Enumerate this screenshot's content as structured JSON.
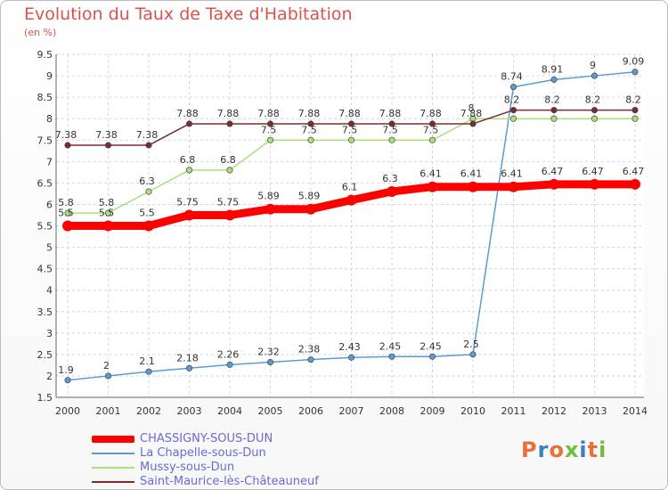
{
  "header": {
    "title": "Evolution du Taux de Taxe d'Habitation",
    "unit": "(en %)"
  },
  "logo": {
    "text": "Proxiti"
  },
  "chart_data": {
    "type": "line",
    "title": "Evolution du Taux de Taxe d'Habitation",
    "subtitle": "(en %)",
    "x": [
      "2000",
      "2001",
      "2002",
      "2003",
      "2004",
      "2005",
      "2006",
      "2007",
      "2008",
      "2009",
      "2010",
      "2011",
      "2012",
      "2013",
      "2014"
    ],
    "yticks": [
      "1.5",
      "2",
      "2.5",
      "3",
      "3.5",
      "4",
      "4.5",
      "5",
      "5.5",
      "6",
      "6.5",
      "7",
      "7.5",
      "8",
      "8.5",
      "9",
      "9.5"
    ],
    "ylim": [
      1.5,
      9.5
    ],
    "grid": true,
    "legend_position": "bottom-left",
    "series": [
      {
        "name": "CHASSIGNY-SOUS-DUN",
        "color": "#ff0000",
        "values": [
          5.5,
          5.5,
          5.5,
          5.75,
          5.75,
          5.89,
          5.89,
          6.1,
          6.3,
          6.41,
          6.41,
          6.41,
          6.47,
          6.47,
          6.47
        ],
        "labels": [
          "5.5",
          "5.5",
          "5.5",
          "5.75",
          "5.75",
          "5.89",
          "5.89",
          "6.1",
          "6.3",
          "6.41",
          "6.41",
          "6.41",
          "6.47",
          "6.47",
          "6.47"
        ]
      },
      {
        "name": "La Chapelle-sous-Dun",
        "color": "#5b9bd5",
        "values": [
          1.9,
          2.0,
          2.1,
          2.18,
          2.26,
          2.32,
          2.38,
          2.43,
          2.45,
          2.45,
          2.5,
          8.74,
          8.91,
          9.0,
          9.09
        ],
        "labels": [
          "1.9",
          "2",
          "2.1",
          "2.18",
          "2.26",
          "2.32",
          "2.38",
          "2.43",
          "2.45",
          "2.45",
          "2.5",
          "8.74",
          "8.91",
          "9",
          "9.09"
        ]
      },
      {
        "name": "Mussy-sous-Dun",
        "color": "#a8e07a",
        "values": [
          5.8,
          5.8,
          6.3,
          6.8,
          6.8,
          7.5,
          7.5,
          7.5,
          7.5,
          7.5,
          8.0,
          8.0,
          8.0,
          8.0,
          8.0
        ],
        "labels": [
          "5.8",
          "5.8",
          "6.3",
          "6.8",
          "6.8",
          "7.5",
          "7.5",
          "7.5",
          "7.5",
          "7.5",
          "8",
          "",
          "",
          "",
          ""
        ]
      },
      {
        "name": "Saint-Maurice-lès-Châteauneuf",
        "color": "#7b2d2d",
        "values": [
          7.38,
          7.38,
          7.38,
          7.88,
          7.88,
          7.88,
          7.88,
          7.88,
          7.88,
          7.88,
          7.88,
          8.2,
          8.2,
          8.2,
          8.2
        ],
        "labels": [
          "7.38",
          "7.38",
          "7.38",
          "7.88",
          "7.88",
          "7.88",
          "7.88",
          "7.88",
          "7.88",
          "7.88",
          "7.88",
          "8.2",
          "8.2",
          "8.2",
          "8.2"
        ]
      }
    ]
  }
}
